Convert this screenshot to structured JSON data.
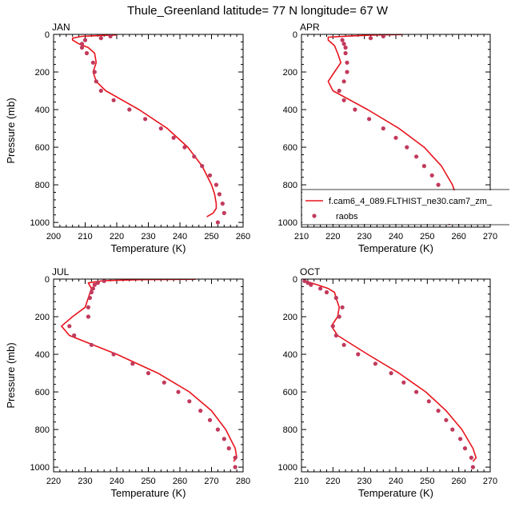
{
  "suptitle": "Thule_Greenland  latitude= 77 N longitude= 67 W",
  "legend": {
    "model_label": "f.cam6_4_089.FLTHIST_ne30.cam7_zm_",
    "obs_label": "raobs"
  },
  "colors": {
    "model_line": "#e8141c",
    "obs_marker": "#c13a5c"
  },
  "chart_data": [
    {
      "type": "line",
      "title": "JAN",
      "xlabel": "Temperature (K)",
      "ylabel": "Pressure (mb)",
      "xlim": [
        200,
        260
      ],
      "ylim": [
        1025,
        0
      ],
      "xticks": [
        200,
        210,
        220,
        230,
        240,
        250,
        260
      ],
      "yticks": [
        0,
        200,
        400,
        600,
        800,
        1000
      ],
      "series": [
        {
          "kind": "line",
          "p": [
            3,
            5,
            10,
            20,
            30,
            50,
            70,
            100,
            150,
            200,
            250,
            300,
            400,
            500,
            600,
            700,
            800,
            850,
            900,
            925,
            950,
            970
          ],
          "t": [
            220,
            216,
            209,
            206,
            206,
            208,
            211,
            213,
            213.5,
            212.5,
            213.5,
            216.5,
            227,
            236,
            242.5,
            247,
            250,
            251,
            251.5,
            251.5,
            250.5,
            248.5
          ]
        },
        {
          "kind": "scatter",
          "p": [
            10,
            20,
            30,
            50,
            70,
            100,
            150,
            200,
            250,
            300,
            350,
            400,
            450,
            500,
            550,
            600,
            650,
            700,
            750,
            800,
            850,
            900,
            950,
            1000
          ],
          "t": [
            218,
            215,
            210,
            209,
            209,
            210.5,
            212.5,
            213,
            213.5,
            215,
            219,
            224,
            229,
            234,
            238,
            241.5,
            244.5,
            247,
            249.5,
            251.5,
            252.5,
            253.5,
            254,
            252
          ]
        }
      ]
    },
    {
      "type": "line",
      "title": "APR",
      "xlabel": "Temperature (K)",
      "ylabel": "",
      "xlim": [
        210,
        270
      ],
      "ylim": [
        1025,
        0
      ],
      "xticks": [
        210,
        220,
        230,
        240,
        250,
        260,
        270
      ],
      "yticks": [
        0,
        200,
        400,
        600,
        800,
        1000
      ],
      "series": [
        {
          "kind": "line",
          "p": [
            1,
            2,
            4,
            8,
            15,
            30,
            60,
            100,
            150,
            200,
            250,
            300,
            400,
            500,
            600,
            700,
            800,
            850,
            900,
            950,
            990
          ],
          "t": [
            242,
            238,
            232,
            226,
            218.5,
            218.5,
            220.5,
            221.5,
            222.5,
            220.5,
            218.5,
            220,
            231,
            241,
            249,
            254.5,
            258,
            259,
            259.5,
            258.5,
            255.5
          ]
        },
        {
          "kind": "scatter",
          "p": [
            10,
            20,
            30,
            50,
            70,
            100,
            150,
            200,
            250,
            300,
            350,
            400,
            450,
            500,
            550,
            600,
            650,
            700,
            750,
            800,
            850,
            900,
            950,
            1000
          ],
          "t": [
            236,
            232,
            223,
            223.5,
            224,
            224,
            224.5,
            224.5,
            223.5,
            222,
            223.5,
            227,
            231.5,
            236,
            240,
            243.5,
            246.5,
            249,
            251.5,
            253.5,
            255,
            256,
            256.5,
            257
          ]
        }
      ]
    },
    {
      "type": "line",
      "title": "JUL",
      "xlabel": "Temperature (K)",
      "ylabel": "Pressure (mb)",
      "xlim": [
        220,
        280
      ],
      "ylim": [
        1025,
        0
      ],
      "xticks": [
        220,
        230,
        240,
        250,
        260,
        270,
        280
      ],
      "yticks": [
        0,
        200,
        400,
        600,
        800,
        1000
      ],
      "series": [
        {
          "kind": "line",
          "p": [
            1,
            3,
            8,
            20,
            50,
            100,
            150,
            200,
            250,
            300,
            400,
            500,
            600,
            700,
            800,
            900,
            950,
            970
          ],
          "t": [
            265,
            248,
            236,
            231,
            232,
            231,
            230,
            226,
            222.5,
            225,
            240,
            253,
            263,
            270,
            274.5,
            277.5,
            278,
            277
          ]
        },
        {
          "kind": "scatter",
          "p": [
            10,
            20,
            30,
            50,
            70,
            100,
            150,
            200,
            250,
            300,
            350,
            400,
            450,
            500,
            550,
            600,
            650,
            700,
            750,
            800,
            850,
            900,
            950,
            1000
          ],
          "t": [
            236,
            234,
            233,
            232.5,
            232,
            231.5,
            231,
            231,
            225,
            226.5,
            232,
            239,
            245,
            250,
            255,
            259.5,
            263,
            266.5,
            269.5,
            272,
            274,
            275.5,
            277.5,
            277.5
          ]
        }
      ]
    },
    {
      "type": "line",
      "title": "OCT",
      "xlabel": "Temperature (K)",
      "ylabel": "",
      "xlim": [
        210,
        270
      ],
      "ylim": [
        1025,
        0
      ],
      "xticks": [
        210,
        220,
        230,
        240,
        250,
        260,
        270
      ],
      "yticks": [
        0,
        200,
        400,
        600,
        800,
        1000
      ],
      "series": [
        {
          "kind": "line",
          "p": [
            10,
            20,
            30,
            50,
            70,
            100,
            150,
            200,
            250,
            300,
            400,
            500,
            600,
            700,
            800,
            900,
            950,
            970
          ],
          "t": [
            211,
            213,
            215,
            218.5,
            220.5,
            221,
            222,
            221.5,
            219.5,
            221.5,
            231,
            241,
            249.5,
            256,
            261,
            264.5,
            265.5,
            264.5
          ]
        },
        {
          "kind": "scatter",
          "p": [
            10,
            20,
            30,
            50,
            70,
            100,
            150,
            200,
            250,
            300,
            350,
            400,
            450,
            500,
            550,
            600,
            650,
            700,
            750,
            800,
            850,
            900,
            950,
            1000
          ],
          "t": [
            211,
            212,
            213,
            216,
            218,
            221,
            223,
            222,
            220,
            221,
            223.5,
            228,
            233.5,
            238.5,
            242.5,
            246.5,
            250.5,
            253.5,
            256,
            258,
            260.5,
            262,
            264,
            264.5
          ]
        }
      ]
    }
  ]
}
